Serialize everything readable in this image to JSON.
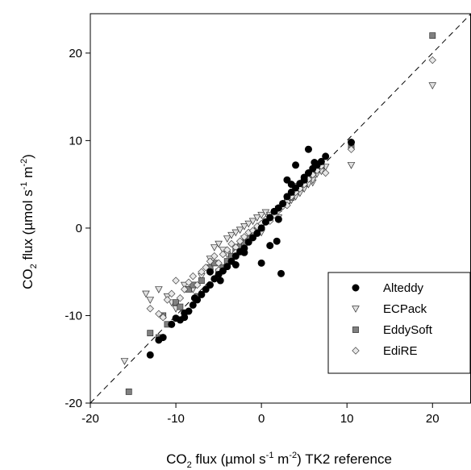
{
  "chart_data": {
    "type": "scatter",
    "xlabel": {
      "pre": "CO",
      "sub": "2",
      "mid": " flux (µmol s",
      "sup1": "-1",
      "mid2": " m",
      "sup2": "-2",
      "post": ") TK2 reference"
    },
    "ylabel": {
      "pre": "CO",
      "sub": "2",
      "mid": " flux (µmol s",
      "sup1": "-1",
      "mid2": " m",
      "sup2": "-2",
      "post": ")"
    },
    "xlim": [
      -20,
      24.5
    ],
    "ylim": [
      -20,
      24.5
    ],
    "xticks": [
      -20,
      -10,
      0,
      10,
      20
    ],
    "yticks": [
      -20,
      -10,
      0,
      10,
      20
    ],
    "grid": false,
    "reference_line": "1:1 dashed",
    "legend_position": "bottom-right",
    "series": [
      {
        "name": "Alteddy",
        "marker": "circle",
        "fill": "#000000",
        "points": [
          [
            -13,
            -14.5
          ],
          [
            -12,
            -12.8
          ],
          [
            -11.5,
            -12.5
          ],
          [
            -10.5,
            -11
          ],
          [
            -9.5,
            -10.5
          ],
          [
            -9,
            -10.2
          ],
          [
            -8.5,
            -9.5
          ],
          [
            -8,
            -8.8
          ],
          [
            -7.5,
            -8.2
          ],
          [
            -7,
            -7.6
          ],
          [
            -6.5,
            -7
          ],
          [
            -6,
            -6.5
          ],
          [
            -5.5,
            -5.8
          ],
          [
            -5,
            -5.3
          ],
          [
            -4.5,
            -4.9
          ],
          [
            -4,
            -4.4
          ],
          [
            -3.5,
            -3.8
          ],
          [
            -3,
            -3.2
          ],
          [
            -2.5,
            -2.7
          ],
          [
            -2,
            -2.3
          ],
          [
            -1.5,
            -1.6
          ],
          [
            -1,
            -1.1
          ],
          [
            -0.5,
            -0.6
          ],
          [
            0,
            0
          ],
          [
            0.5,
            0.7
          ],
          [
            1,
            1.2
          ],
          [
            1.5,
            1.9
          ],
          [
            2,
            2.3
          ],
          [
            2.5,
            2.8
          ],
          [
            3,
            3.6
          ],
          [
            3.5,
            4.1
          ],
          [
            4,
            4.6
          ],
          [
            4.5,
            5.1
          ],
          [
            5,
            5.5
          ],
          [
            5.5,
            6.3
          ],
          [
            6,
            6.8
          ],
          [
            6.5,
            7.2
          ],
          [
            7,
            7.6
          ],
          [
            7.5,
            8.2
          ],
          [
            3,
            5.5
          ],
          [
            5.5,
            9
          ],
          [
            2.3,
            -5.2
          ],
          [
            0,
            -4
          ],
          [
            -9,
            -9.7
          ],
          [
            -10,
            -10.3
          ],
          [
            2,
            1
          ],
          [
            1,
            -2
          ],
          [
            -7.8,
            -8
          ],
          [
            4,
            7.2
          ],
          [
            10.5,
            9.8
          ],
          [
            -4.8,
            -6
          ],
          [
            -6,
            -5
          ],
          [
            -3,
            -4.2
          ],
          [
            -2,
            -2.8
          ],
          [
            1.8,
            -1.5
          ],
          [
            3.5,
            5
          ],
          [
            5,
            5.8
          ],
          [
            6.2,
            7.5
          ]
        ]
      },
      {
        "name": "ECPack",
        "marker": "triangle-down",
        "fill": "#e0e0e0",
        "points": [
          [
            -16,
            -15.2
          ],
          [
            -13.5,
            -7.5
          ],
          [
            -13,
            -8.2
          ],
          [
            -12,
            -7
          ],
          [
            -11,
            -7.8
          ],
          [
            -10.5,
            -8.5
          ],
          [
            -10,
            -9.2
          ],
          [
            -9,
            -6.5
          ],
          [
            -8,
            -7
          ],
          [
            -7,
            -5.5
          ],
          [
            -6,
            -3.5
          ],
          [
            -5.5,
            -2.2
          ],
          [
            -5,
            -1.8
          ],
          [
            -4.5,
            -2.5
          ],
          [
            -4,
            -1.2
          ],
          [
            -3.5,
            -0.8
          ],
          [
            -3,
            -0.5
          ],
          [
            -2.5,
            -0.2
          ],
          [
            -2,
            0.2
          ],
          [
            -1.5,
            0.5
          ],
          [
            -1,
            0.8
          ],
          [
            -0.5,
            1.2
          ],
          [
            0,
            1.5
          ],
          [
            0.5,
            1.8
          ],
          [
            1,
            1.5
          ],
          [
            1.5,
            1.6
          ],
          [
            2,
            2.2
          ],
          [
            2.5,
            2.5
          ],
          [
            3,
            2.8
          ],
          [
            3.5,
            3.2
          ],
          [
            4,
            3.6
          ],
          [
            4.5,
            4
          ],
          [
            5,
            4.5
          ],
          [
            5.5,
            5
          ],
          [
            6,
            5.2
          ],
          [
            6.5,
            6.2
          ],
          [
            7,
            6.5
          ],
          [
            7.5,
            7
          ],
          [
            10.5,
            7.2
          ],
          [
            20,
            16.3
          ],
          [
            -6,
            -5
          ],
          [
            -4,
            -3
          ],
          [
            -2,
            -1.2
          ],
          [
            0,
            -0.5
          ],
          [
            2,
            1.2
          ],
          [
            4,
            4.8
          ],
          [
            6,
            5.5
          ]
        ]
      },
      {
        "name": "EddySoft",
        "marker": "square",
        "fill": "#808080",
        "points": [
          [
            -15.5,
            -18.7
          ],
          [
            -13,
            -12
          ],
          [
            -12,
            -12.5
          ],
          [
            -11,
            -11
          ],
          [
            -10,
            -8.5
          ],
          [
            -9.5,
            -9
          ],
          [
            -8.5,
            -7
          ],
          [
            -8,
            -6.5
          ],
          [
            -7,
            -6
          ],
          [
            -6,
            -4.5
          ],
          [
            -5.5,
            -4
          ],
          [
            -5,
            -5
          ],
          [
            -4.5,
            -4.5
          ],
          [
            -4,
            -3.8
          ],
          [
            -3.5,
            -3.2
          ],
          [
            -3,
            -2.6
          ],
          [
            -2.5,
            -2.1
          ],
          [
            -2,
            -1.7
          ],
          [
            -1.5,
            -1.2
          ],
          [
            -1,
            -0.8
          ],
          [
            -0.5,
            -0.3
          ],
          [
            0,
            0.2
          ],
          [
            0.5,
            0.8
          ],
          [
            1,
            1.2
          ],
          [
            1.5,
            1.8
          ],
          [
            2,
            2.2
          ],
          [
            2.5,
            2.7
          ],
          [
            3,
            3.1
          ],
          [
            3.5,
            3.5
          ],
          [
            4,
            4.2
          ],
          [
            4.5,
            4.7
          ],
          [
            5,
            5.1
          ],
          [
            5.5,
            5.8
          ],
          [
            6,
            6.3
          ],
          [
            6.5,
            6.7
          ],
          [
            7,
            7.2
          ],
          [
            10.5,
            9.3
          ],
          [
            20,
            22
          ],
          [
            -7.5,
            -7.8
          ],
          [
            -11.5,
            -10
          ]
        ]
      },
      {
        "name": "EdiRE",
        "marker": "diamond",
        "fill": "#e8e8e8",
        "points": [
          [
            -13,
            -9.2
          ],
          [
            -12,
            -9.8
          ],
          [
            -11.5,
            -10.2
          ],
          [
            -11,
            -8.2
          ],
          [
            -10.5,
            -7.5
          ],
          [
            -10,
            -6
          ],
          [
            -9.5,
            -8
          ],
          [
            -9,
            -7
          ],
          [
            -8.5,
            -6.2
          ],
          [
            -8,
            -5.5
          ],
          [
            -7.5,
            -6.5
          ],
          [
            -7,
            -5
          ],
          [
            -6.5,
            -4.5
          ],
          [
            -6,
            -3.8
          ],
          [
            -5.5,
            -3.2
          ],
          [
            -5,
            -4.8
          ],
          [
            -4.5,
            -3
          ],
          [
            -4,
            -2.5
          ],
          [
            -3.5,
            -1.8
          ],
          [
            -3,
            -2.2
          ],
          [
            -2.5,
            -1.5
          ],
          [
            -2,
            -1
          ],
          [
            -1.5,
            -0.5
          ],
          [
            -1,
            -0.3
          ],
          [
            -0.5,
            0.2
          ],
          [
            0,
            0.5
          ],
          [
            0.5,
            1
          ],
          [
            1,
            1.2
          ],
          [
            1.5,
            1.5
          ],
          [
            2,
            2
          ],
          [
            2.5,
            2.5
          ],
          [
            3,
            3
          ],
          [
            3.5,
            3.6
          ],
          [
            4,
            4.1
          ],
          [
            4.5,
            4.5
          ],
          [
            5,
            5
          ],
          [
            5.5,
            5.6
          ],
          [
            6,
            6.1
          ],
          [
            6.5,
            6.6
          ],
          [
            7,
            7.1
          ],
          [
            7.5,
            6.3
          ],
          [
            10.5,
            9
          ],
          [
            20,
            19.2
          ],
          [
            -5,
            -4
          ],
          [
            -3,
            -2.8
          ],
          [
            -1,
            -0.9
          ],
          [
            1,
            0.8
          ],
          [
            3,
            2.6
          ]
        ]
      }
    ]
  }
}
